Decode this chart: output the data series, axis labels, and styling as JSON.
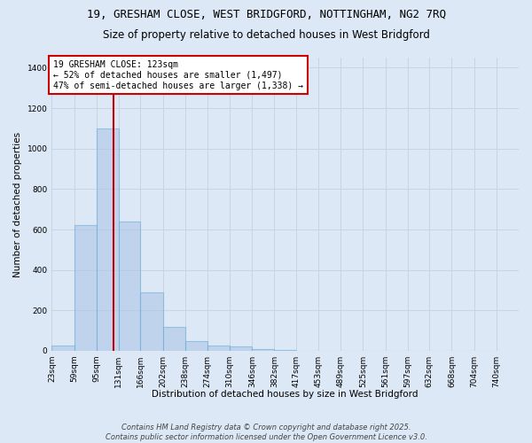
{
  "title_line1": "19, GRESHAM CLOSE, WEST BRIDGFORD, NOTTINGHAM, NG2 7RQ",
  "title_line2": "Size of property relative to detached houses in West Bridgford",
  "xlabel": "Distribution of detached houses by size in West Bridgford",
  "ylabel": "Number of detached properties",
  "bin_edges": [
    23,
    59,
    95,
    131,
    166,
    202,
    238,
    274,
    310,
    346,
    382,
    417,
    453,
    489,
    525,
    561,
    597,
    632,
    668,
    704,
    740
  ],
  "bar_heights": [
    25,
    620,
    1100,
    640,
    290,
    120,
    50,
    25,
    20,
    10,
    5,
    0,
    0,
    0,
    0,
    0,
    0,
    0,
    0,
    0
  ],
  "bar_color": "#aec6e8",
  "bar_edge_color": "#6aaed6",
  "bar_alpha": 0.6,
  "vline_x": 123,
  "vline_color": "#cc0000",
  "ylim": [
    0,
    1450
  ],
  "yticks": [
    0,
    200,
    400,
    600,
    800,
    1000,
    1200,
    1400
  ],
  "grid_color": "#c8d4e0",
  "bg_color": "#dce8f5",
  "annotation_text": "19 GRESHAM CLOSE: 123sqm\n← 52% of detached houses are smaller (1,497)\n47% of semi-detached houses are larger (1,338) →",
  "footer_line1": "Contains HM Land Registry data © Crown copyright and database right 2025.",
  "footer_line2": "Contains public sector information licensed under the Open Government Licence v3.0.",
  "tick_labels": [
    "23sqm",
    "59sqm",
    "95sqm",
    "131sqm",
    "166sqm",
    "202sqm",
    "238sqm",
    "274sqm",
    "310sqm",
    "346sqm",
    "382sqm",
    "417sqm",
    "453sqm",
    "489sqm",
    "525sqm",
    "561sqm",
    "597sqm",
    "632sqm",
    "668sqm",
    "704sqm",
    "740sqm"
  ],
  "title_fontsize": 9,
  "subtitle_fontsize": 8.5,
  "axis_label_fontsize": 7.5,
  "tick_fontsize": 6.5,
  "annotation_fontsize": 7,
  "footer_fontsize": 6
}
